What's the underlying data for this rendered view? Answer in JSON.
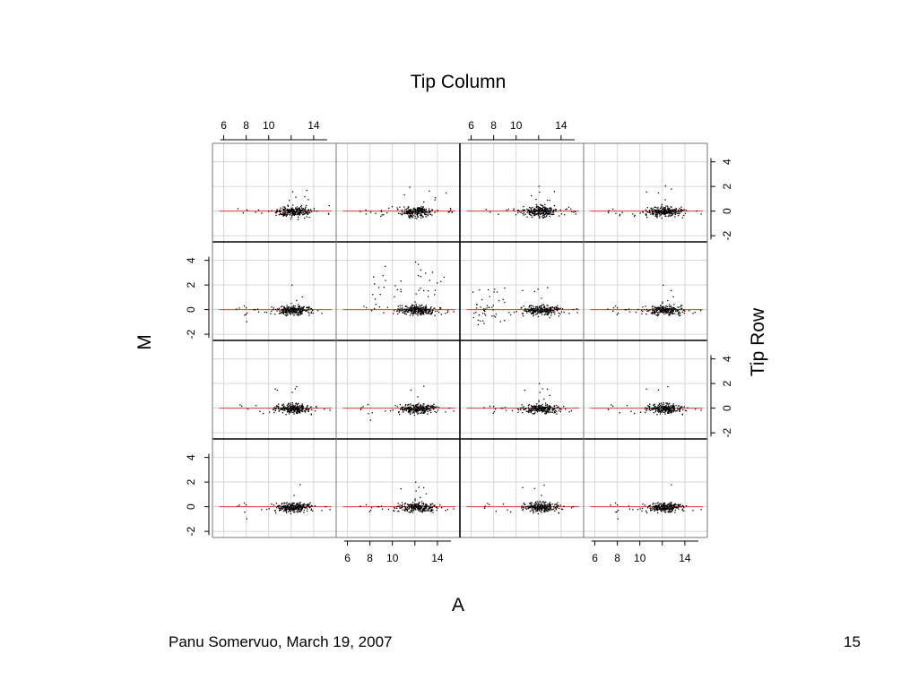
{
  "chart_data": {
    "type": "scatter",
    "layout": "4x4 panel grid (Tip Row x Tip Column)",
    "title": "Tip Column",
    "xlabel": "A",
    "ylabel": "M",
    "right_label": "Tip Row",
    "xlim": [
      5,
      16
    ],
    "ylim": [
      -2.5,
      5.5
    ],
    "x_ticks": [
      6,
      8,
      10,
      14
    ],
    "y_ticks": [
      -2,
      0,
      2,
      4
    ],
    "grid": true,
    "fit_line_color": "#e8392f",
    "point_color": "#000000",
    "fit_value": 0,
    "rows": 4,
    "cols": 4
  },
  "footer": {
    "author_date": "Panu Somervuo, March 19, 2007",
    "page_number": "15"
  }
}
